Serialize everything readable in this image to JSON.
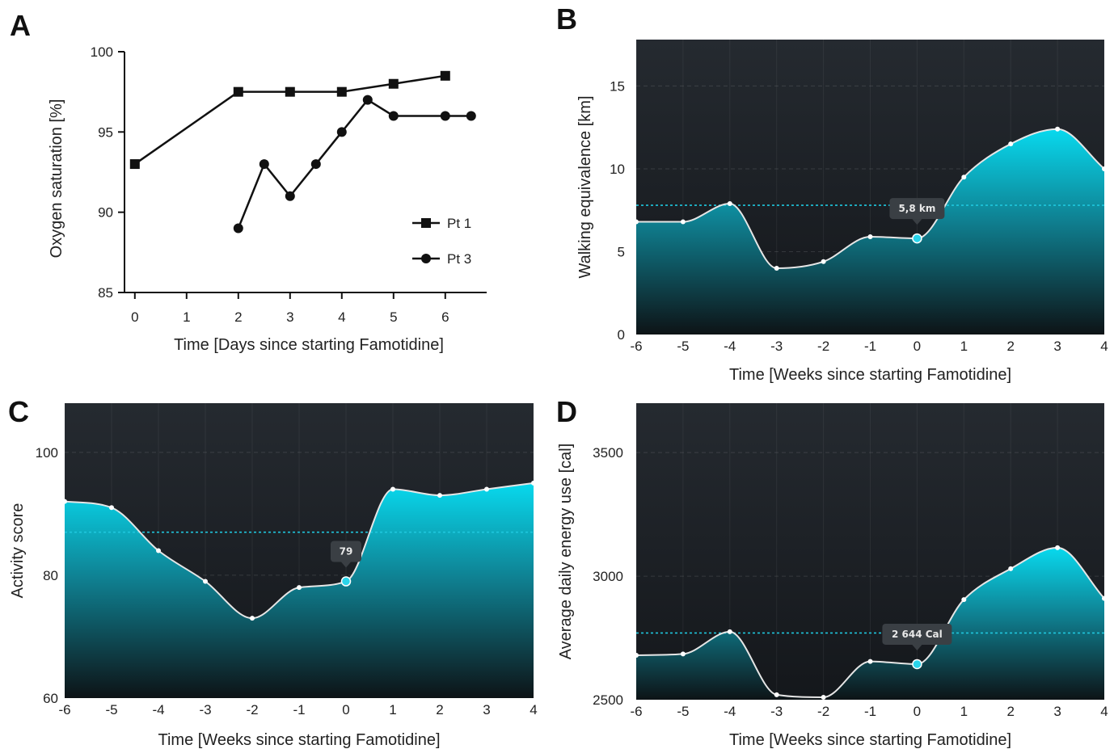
{
  "chart_data": [
    {
      "panel": "A",
      "type": "line",
      "xlabel": "Time [Days since starting Famotidine]",
      "ylabel": "Oxygen saturation [%]",
      "xlim": [
        -0.2,
        6.8
      ],
      "ylim": [
        85,
        100
      ],
      "xticks": [
        0,
        1,
        2,
        3,
        4,
        5,
        6
      ],
      "yticks": [
        85,
        90,
        95,
        100
      ],
      "xtick_labels": [
        "0",
        "1",
        "2",
        "3",
        "4",
        "5",
        "6"
      ],
      "ytick_labels": [
        "85",
        "90",
        "95",
        "100"
      ],
      "legend_position": "right",
      "series": [
        {
          "name": "Pt 1",
          "marker": "square",
          "x": [
            0,
            2,
            3,
            4,
            5,
            6
          ],
          "y": [
            93,
            97.5,
            97.5,
            97.5,
            98,
            98.5
          ]
        },
        {
          "name": "Pt 3",
          "marker": "circle",
          "x": [
            2,
            2.5,
            3,
            3.5,
            4,
            4.5,
            5,
            6,
            6.5
          ],
          "y": [
            89,
            93,
            91,
            93,
            95,
            97,
            96,
            96,
            96
          ]
        }
      ]
    },
    {
      "panel": "B",
      "type": "area",
      "xlabel": "Time [Weeks since starting Famotidine]",
      "ylabel": "Walking equivalence [km]",
      "xlim": [
        -6,
        4
      ],
      "ylim": [
        0,
        17.8
      ],
      "xticks": [
        -6,
        -5,
        -4,
        -3,
        -2,
        -1,
        0,
        1,
        2,
        3,
        4
      ],
      "yticks": [
        0,
        5,
        10,
        15
      ],
      "xtick_labels": [
        "-6",
        "-5",
        "-4",
        "-3",
        "-2",
        "-1",
        "0",
        "1",
        "2",
        "3",
        "4"
      ],
      "ytick_labels": [
        "0",
        "5",
        "10",
        "15"
      ],
      "x": [
        -6,
        -5,
        -4,
        -3,
        -2,
        -1,
        0,
        1,
        2,
        3,
        4
      ],
      "y": [
        6.8,
        6.8,
        7.9,
        4.0,
        4.4,
        5.9,
        5.8,
        9.5,
        11.5,
        12.4,
        10.0
      ],
      "reference_line": 7.8,
      "highlight_x": 0,
      "highlight_label": "5,8 km"
    },
    {
      "panel": "C",
      "type": "area",
      "xlabel": "Time [Weeks since starting Famotidine]",
      "ylabel": "Activity score",
      "xlim": [
        -6,
        4
      ],
      "ylim": [
        60,
        108
      ],
      "xticks": [
        -6,
        -5,
        -4,
        -3,
        -2,
        -1,
        0,
        1,
        2,
        3,
        4
      ],
      "yticks": [
        60,
        80,
        100
      ],
      "xtick_labels": [
        "-6",
        "-5",
        "-4",
        "-3",
        "-2",
        "-1",
        "0",
        "1",
        "2",
        "3",
        "4"
      ],
      "ytick_labels": [
        "60",
        "80",
        "100"
      ],
      "x": [
        -6,
        -5,
        -4,
        -3,
        -2,
        -1,
        0,
        1,
        2,
        3,
        4
      ],
      "y": [
        92,
        91,
        84,
        79,
        73,
        78,
        79,
        94,
        93,
        94,
        95
      ],
      "reference_line": 87,
      "highlight_x": 0,
      "highlight_label": "79"
    },
    {
      "panel": "D",
      "type": "area",
      "xlabel": "Time [Weeks since starting Famotidine]",
      "ylabel": "Average daily energy use [cal]",
      "xlim": [
        -6,
        4
      ],
      "ylim": [
        2500,
        3700
      ],
      "xticks": [
        -6,
        -5,
        -4,
        -3,
        -2,
        -1,
        0,
        1,
        2,
        3,
        4
      ],
      "yticks": [
        2500,
        3000,
        3500
      ],
      "xtick_labels": [
        "-6",
        "-5",
        "-4",
        "-3",
        "-2",
        "-1",
        "0",
        "1",
        "2",
        "3",
        "4"
      ],
      "ytick_labels": [
        "2500",
        "3000",
        "3500"
      ],
      "x": [
        -6,
        -5,
        -4,
        -3,
        -2,
        -1,
        0,
        1,
        2,
        3,
        4
      ],
      "y": [
        2680,
        2685,
        2775,
        2520,
        2510,
        2655,
        2644,
        2905,
        3030,
        3115,
        2910
      ],
      "reference_line": 2770,
      "highlight_x": 0,
      "highlight_label": "2 644 Cal"
    }
  ],
  "colors": {
    "bg_dark_top": "#252a30",
    "bg_dark_bottom": "#14171b",
    "fill_top": "#08d9ee",
    "fill_mid": "#0f7f90",
    "fill_bottom": "#0d1316",
    "curve": "#e6e6e6",
    "ref_line": "#1fc7dd",
    "highlight": "#2ad4ea",
    "tooltip_bg": "#3a3f44"
  }
}
